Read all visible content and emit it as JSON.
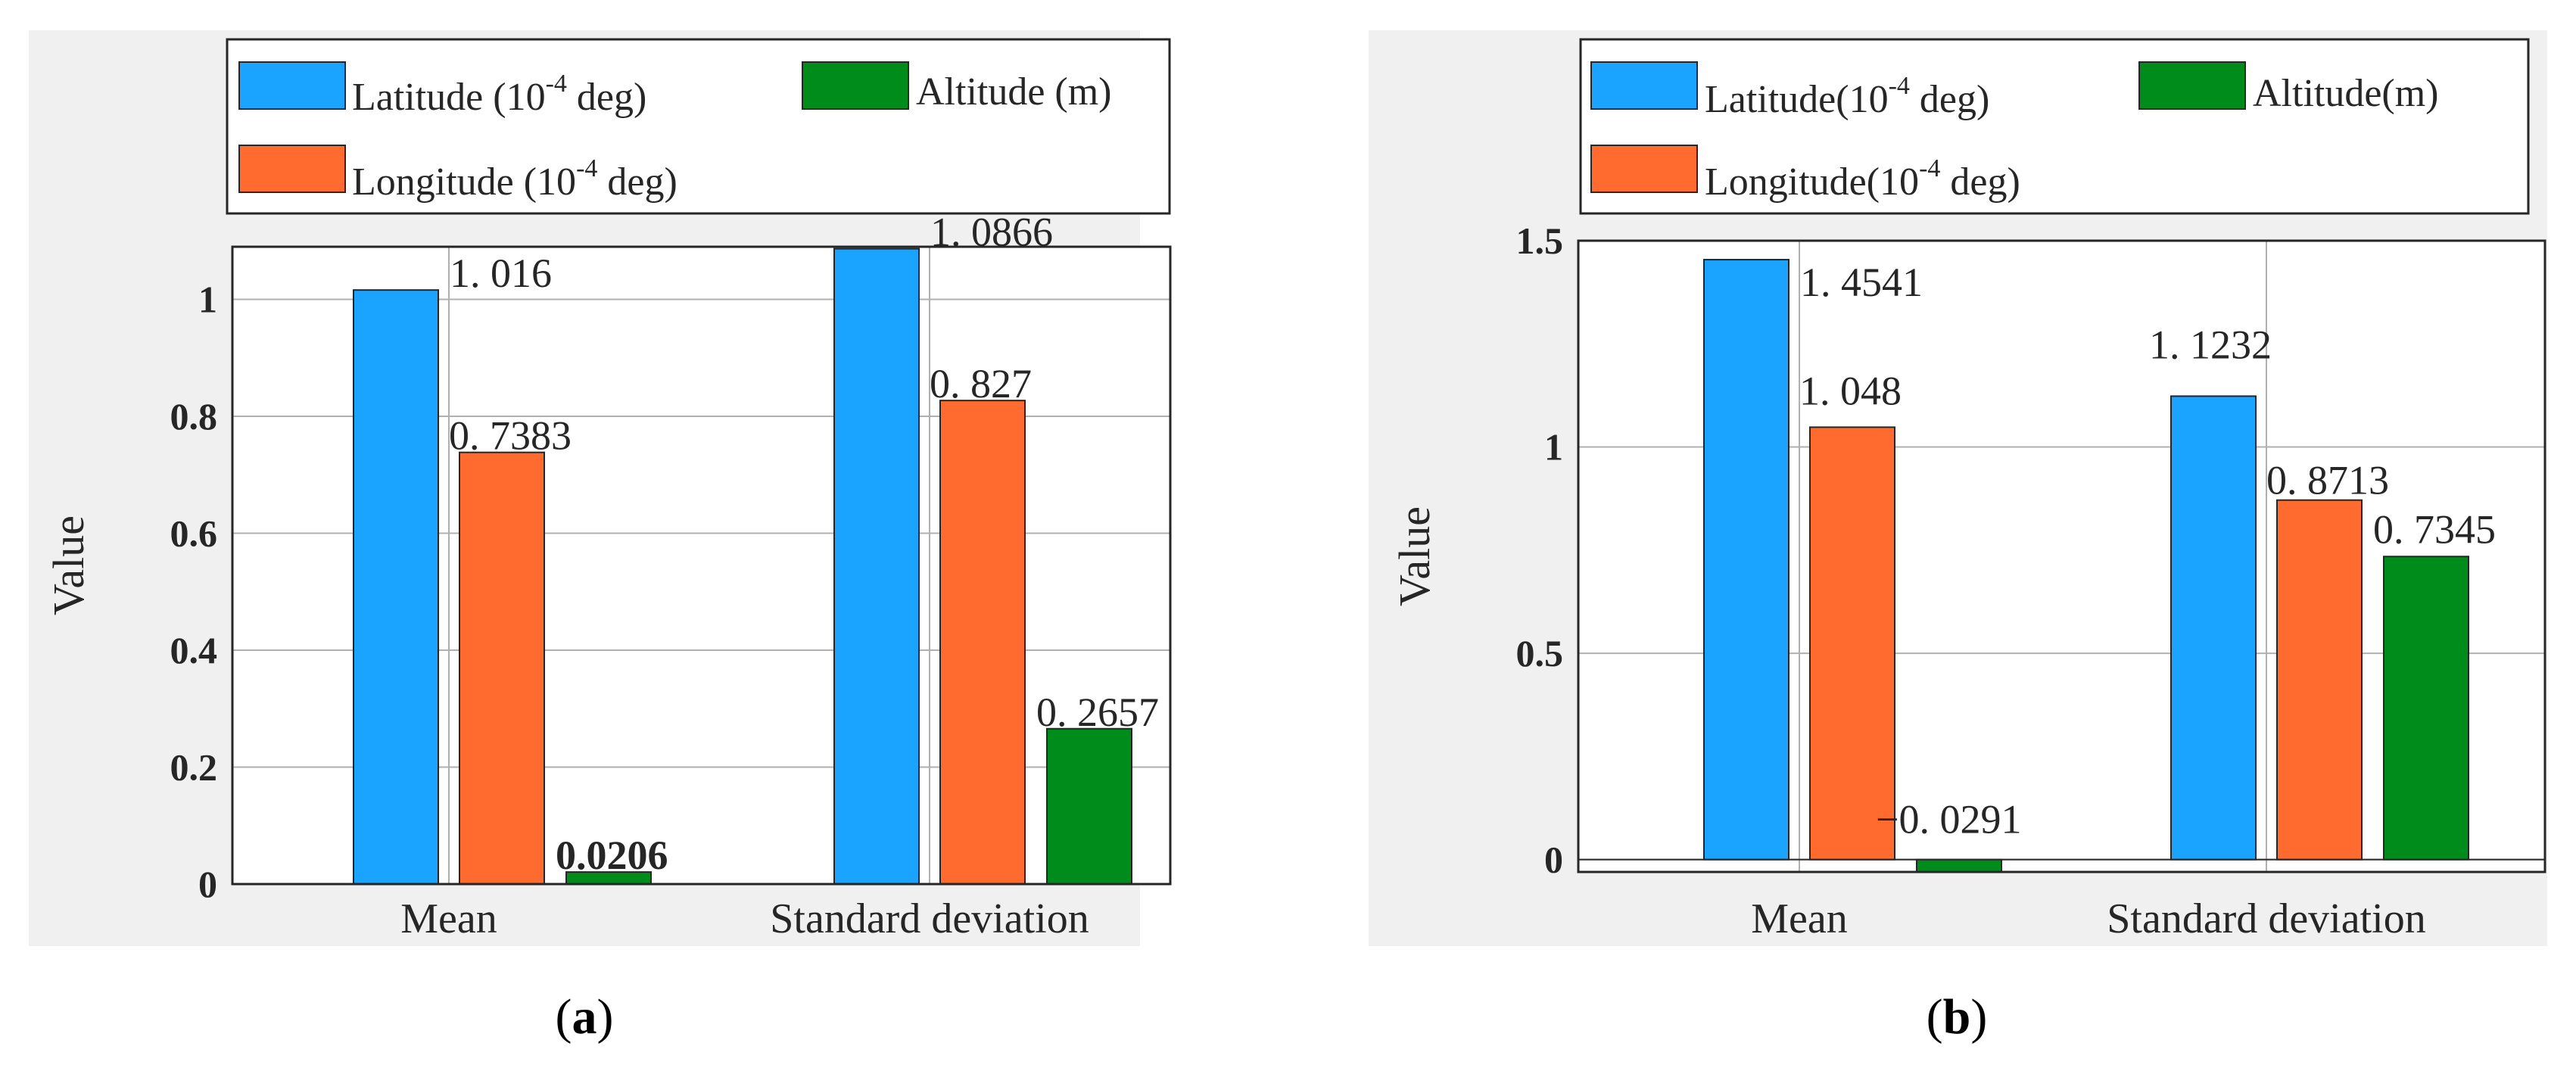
{
  "colors": {
    "latitude": "#1AA3FF",
    "longitude": "#FF6B2E",
    "altitude": "#008C1A",
    "panel_bg": "#F0F0F0",
    "plot_bg": "#FFFFFF",
    "grid": "#B0B0B0"
  },
  "chart_data": [
    {
      "type": "bar",
      "panel_label": "(a)",
      "panel_letter": "a",
      "ylabel": "Value",
      "xlabel": "",
      "categories": [
        "Mean",
        "Standard deviation"
      ],
      "ylim": [
        0,
        1.09
      ],
      "yticks": [
        0,
        0.2,
        0.4,
        0.6,
        0.8,
        1
      ],
      "ytick_labels": [
        "0",
        "0.2",
        "0.4",
        "0.6",
        "0.8",
        "1"
      ],
      "legend": [
        {
          "name_main": "Latitude (10",
          "name_sup": "-4",
          "name_tail": " deg)"
        },
        {
          "name_main": "Altitude (m)",
          "name_sup": "",
          "name_tail": ""
        },
        {
          "name_main": "Longitude (10",
          "name_sup": "-4",
          "name_tail": " deg)"
        }
      ],
      "series": [
        {
          "name": "Latitude (10^-4 deg)",
          "values": [
            1.016,
            1.0866
          ],
          "labels": [
            "1. 016",
            "1. 0866"
          ]
        },
        {
          "name": "Longitude (10^-4 deg)",
          "values": [
            0.7383,
            0.827
          ],
          "labels": [
            "0. 7383",
            "0. 827"
          ]
        },
        {
          "name": "Altitude (m)",
          "values": [
            0.0206,
            0.2657
          ],
          "labels": [
            "0.0206",
            "0. 2657"
          ]
        }
      ]
    },
    {
      "type": "bar",
      "panel_label": "(b)",
      "panel_letter": "b",
      "ylabel": "Value",
      "xlabel": "",
      "categories": [
        "Mean",
        "Standard deviation"
      ],
      "ylim": [
        -0.03,
        1.5
      ],
      "yticks": [
        0,
        0.5,
        1,
        1.5
      ],
      "ytick_labels": [
        "0",
        "0.5",
        "1",
        "1.5"
      ],
      "legend": [
        {
          "name_main": "Latitude(10",
          "name_sup": "-4",
          "name_tail": " deg)"
        },
        {
          "name_main": "Altitude(m)",
          "name_sup": "",
          "name_tail": ""
        },
        {
          "name_main": "Longitude(10",
          "name_sup": "-4",
          "name_tail": " deg)"
        }
      ],
      "series": [
        {
          "name": "Latitude(10^-4 deg)",
          "values": [
            1.4541,
            1.1232
          ],
          "labels": [
            "1. 4541",
            "1. 1232"
          ]
        },
        {
          "name": "Longitude(10^-4 deg)",
          "values": [
            1.048,
            0.8713
          ],
          "labels": [
            "1. 048",
            "0. 8713"
          ]
        },
        {
          "name": "Altitude(m)",
          "values": [
            -0.0291,
            0.7345
          ],
          "labels": [
            "−0. 0291",
            "0. 7345"
          ]
        }
      ]
    }
  ]
}
